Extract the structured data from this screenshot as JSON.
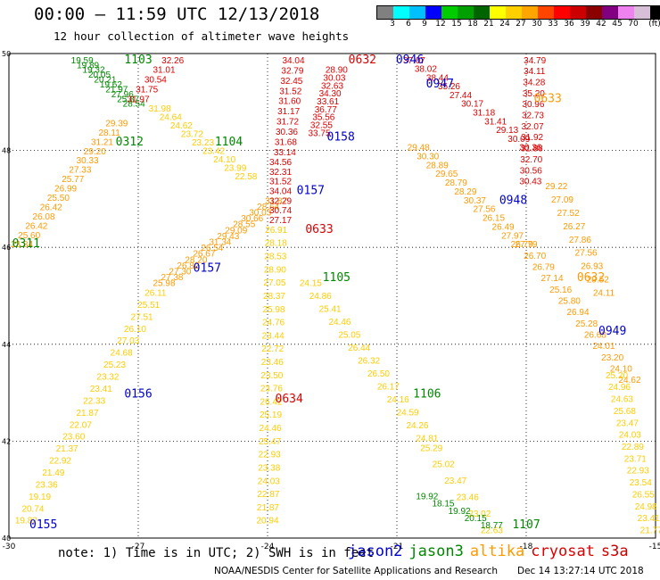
{
  "header": {
    "title": "00:00 – 11:59 UTC 12/13/2018",
    "subtitle": "12 hour collection of altimeter wave heights"
  },
  "colorbar": {
    "colors": [
      "#808080",
      "#00ffff",
      "#00bfff",
      "#0000ff",
      "#00cc00",
      "#00a000",
      "#006400",
      "#ffff00",
      "#ffd000",
      "#ffa500",
      "#ff4500",
      "#ff0000",
      "#cc0000",
      "#8b0000",
      "#800080",
      "#ee82ee",
      "#d8bfd8",
      "#000000"
    ],
    "labels": [
      "3",
      "6",
      "9",
      "12",
      "15",
      "18",
      "21",
      "24",
      "27",
      "30",
      "33",
      "36",
      "39",
      "42",
      "45",
      "70",
      "(ft)"
    ]
  },
  "note": "note: 1) Time is in UTC; 2) SWH is in feet",
  "satellites": [
    {
      "name": "jason2",
      "color": "#0000cc"
    },
    {
      "name": "jason3",
      "color": "#008800"
    },
    {
      "name": "altika",
      "color": "#ff9900"
    },
    {
      "name": "cryosat",
      "color": "#dd0000"
    },
    {
      "name": "s3a",
      "color": "#cc0000"
    }
  ],
  "footer": {
    "credit": "NOAA/NESDIS Center for Satellite Applications and Research",
    "timestamp": "Dec 14 13:27:14 UTC 2018"
  },
  "chart_data": {
    "type": "scatter",
    "xlim": [
      -30,
      -15
    ],
    "ylim": [
      40,
      50
    ],
    "xticks": [
      -30,
      -27,
      -24,
      -21,
      -18,
      -15
    ],
    "yticks": [
      40,
      42,
      44,
      46,
      48,
      50
    ],
    "xticklabels": [
      "-30",
      "-27",
      "-24",
      "-21",
      "-18",
      "-15"
    ],
    "yticklabels": [
      "40",
      "42",
      "44",
      "46",
      "48",
      "50"
    ],
    "grid": true,
    "pass_labels": [
      {
        "text": "1103",
        "lon": -27.0,
        "lat": 49.8,
        "color": "#008800"
      },
      {
        "text": "0632",
        "lon": -21.8,
        "lat": 49.8,
        "color": "#dd0000"
      },
      {
        "text": "0946",
        "lon": -20.7,
        "lat": 49.8,
        "color": "#0000cc"
      },
      {
        "text": "0947",
        "lon": -20.0,
        "lat": 49.3,
        "color": "#0000cc"
      },
      {
        "text": "0633",
        "lon": -17.5,
        "lat": 49.0,
        "color": "#ff9900"
      },
      {
        "text": "0312",
        "lon": -27.2,
        "lat": 48.1,
        "color": "#008800"
      },
      {
        "text": "1104",
        "lon": -24.9,
        "lat": 48.1,
        "color": "#008800"
      },
      {
        "text": "0158",
        "lon": -22.3,
        "lat": 48.2,
        "color": "#0000cc"
      },
      {
        "text": "0157",
        "lon": -23.0,
        "lat": 47.1,
        "color": "#0000cc"
      },
      {
        "text": "0948",
        "lon": -18.3,
        "lat": 46.9,
        "color": "#0000cc"
      },
      {
        "text": "0633",
        "lon": -22.8,
        "lat": 46.3,
        "color": "#dd0000"
      },
      {
        "text": "0311",
        "lon": -29.6,
        "lat": 46.0,
        "color": "#008800"
      },
      {
        "text": "0157",
        "lon": -25.4,
        "lat": 45.5,
        "color": "#0000cc"
      },
      {
        "text": "1105",
        "lon": -22.4,
        "lat": 45.3,
        "color": "#008800"
      },
      {
        "text": "0632",
        "lon": -16.5,
        "lat": 45.3,
        "color": "#ff9900"
      },
      {
        "text": "0949",
        "lon": -16.0,
        "lat": 44.2,
        "color": "#0000cc"
      },
      {
        "text": "0156",
        "lon": -27.0,
        "lat": 42.9,
        "color": "#0000cc"
      },
      {
        "text": "0634",
        "lon": -23.5,
        "lat": 42.8,
        "color": "#dd0000"
      },
      {
        "text": "1106",
        "lon": -20.3,
        "lat": 42.9,
        "color": "#008800"
      },
      {
        "text": "0155",
        "lon": -29.2,
        "lat": 40.2,
        "color": "#0000cc"
      },
      {
        "text": "1107",
        "lon": -18.0,
        "lat": 40.2,
        "color": "#008800"
      }
    ],
    "passes": [
      {
        "name": "pass-1103-nw",
        "color": "#008800",
        "start": [
          -28.3,
          49.8
        ],
        "end": [
          -27.1,
          48.9
        ],
        "values": [
          "19.59",
          "19.89",
          "19.32",
          "20.05",
          "20.21",
          "19.62",
          "21.97",
          "27.96",
          "25.87",
          "28.54"
        ]
      },
      {
        "name": "pass-cryo-nw",
        "color": "#dd0000",
        "start": [
          -26.2,
          49.8
        ],
        "end": [
          -27.0,
          49.0
        ],
        "values": [
          "32.26",
          "31.01",
          "30.54",
          "31.75",
          "31.97"
        ]
      },
      {
        "name": "pass-0312",
        "color": "#ff9900",
        "start": [
          -27.5,
          48.5
        ],
        "end": [
          -29.7,
          46.0
        ],
        "values": [
          "29.39",
          "28.11",
          "31.21",
          "29.20",
          "30.33",
          "27.33",
          "25.77",
          "26.99",
          "25.50",
          "26.42",
          "26.08",
          "26.42",
          "25.60",
          "23.84"
        ]
      },
      {
        "name": "pass-1104-sw",
        "color": "#ffcc00",
        "start": [
          -26.5,
          48.8
        ],
        "end": [
          -24.5,
          47.4
        ],
        "values": [
          "31.98",
          "24.64",
          "24.62",
          "23.72",
          "23.23",
          "23.42",
          "24.10",
          "23.99",
          "22.58"
        ]
      },
      {
        "name": "pass-0157-nw",
        "color": "#ff9900",
        "start": [
          -23.8,
          46.9
        ],
        "end": [
          -26.4,
          45.2
        ],
        "values": [
          "31.87",
          "28.64",
          "30.03",
          "30.66",
          "28.55",
          "29.09",
          "29.43",
          "31.34",
          "26.54",
          "26.67",
          "28.20",
          "26.82",
          "27.30",
          "27.38",
          "25.98"
        ]
      },
      {
        "name": "pass-0156",
        "color": "#ffcc00",
        "start": [
          -26.6,
          45.0
        ],
        "end": [
          -29.6,
          40.3
        ],
        "values": [
          "26.11",
          "25.51",
          "27.51",
          "26.10",
          "27.03",
          "24.68",
          "25.23",
          "23.32",
          "23.41",
          "22.33",
          "21.87",
          "22.07",
          "23.60",
          "21.37",
          "22.92",
          "21.49",
          "23.36",
          "19.19",
          "20.74",
          "19.82"
        ]
      },
      {
        "name": "pass-0632-n",
        "color": "#dd0000",
        "start": [
          -23.4,
          49.8
        ],
        "end": [
          -23.6,
          47.9
        ],
        "values": [
          "34.04",
          "32.79",
          "32.45",
          "31.52",
          "31.60",
          "31.17",
          "31.72",
          "30.36",
          "31.68",
          "33.14"
        ]
      },
      {
        "name": "pass-0157-center",
        "color": "#dd0000",
        "start": [
          -23.7,
          47.7
        ],
        "end": [
          -23.7,
          46.5
        ],
        "values": [
          "34.56",
          "32.31",
          "31.52",
          "34.04",
          "32.29",
          "30.74",
          "27.17"
        ]
      },
      {
        "name": "pass-0634",
        "color": "#ffcc00",
        "start": [
          -23.8,
          46.3
        ],
        "end": [
          -24.0,
          40.3
        ],
        "values": [
          "26.91",
          "28.18",
          "28.53",
          "28.90",
          "27.05",
          "28.37",
          "25.98",
          "24.76",
          "23.44",
          "22.72",
          "23.46",
          "23.50",
          "23.76",
          "26.42",
          "25.19",
          "24.46",
          "25.47",
          "22.93",
          "23.38",
          "24.03",
          "22.87",
          "21.87",
          "20.94"
        ]
      },
      {
        "name": "pass-0946-cluster",
        "color": "#dd0000",
        "start": [
          -22.4,
          49.6
        ],
        "end": [
          -22.8,
          48.3
        ],
        "values": [
          "28.90",
          "30.03",
          "32.63",
          "34.30",
          "33.61",
          "36.77",
          "35.56",
          "32.55",
          "33.75"
        ]
      },
      {
        "name": "pass-0947",
        "color": "#dd0000",
        "start": [
          -20.6,
          49.8
        ],
        "end": [
          -17.9,
          48.0
        ],
        "values": [
          "37.07",
          "38.02",
          "38.44",
          "35.26",
          "27.44",
          "30.17",
          "31.18",
          "31.41",
          "29.13",
          "30.09",
          "30.36"
        ]
      },
      {
        "name": "pass-0633-cryo",
        "color": "#dd0000",
        "start": [
          -17.8,
          49.8
        ],
        "end": [
          -17.9,
          47.3
        ],
        "values": [
          "34.79",
          "34.11",
          "34.28",
          "35.20",
          "30.96",
          "32.73",
          "32.07",
          "31.92",
          "31.88",
          "32.70",
          "30.56",
          "30.43"
        ]
      },
      {
        "name": "pass-0158",
        "color": "#ff9900",
        "start": [
          -20.5,
          48.0
        ],
        "end": [
          -18.1,
          46.0
        ],
        "values": [
          "29.48",
          "30.30",
          "28.89",
          "29.65",
          "28.79",
          "28.29",
          "30.37",
          "27.56",
          "26.15",
          "26.49",
          "27.97",
          "26.79"
        ]
      },
      {
        "name": "pass-0633-alt",
        "color": "#ff9900",
        "start": [
          -17.3,
          47.2
        ],
        "end": [
          -16.2,
          45.0
        ],
        "values": [
          "29.22",
          "27.09",
          "27.52",
          "26.27",
          "27.86",
          "27.56",
          "26.93",
          "29.52",
          "24.11"
        ]
      },
      {
        "name": "pass-0948",
        "color": "#ff9900",
        "start": [
          -18.0,
          46.0
        ],
        "end": [
          -15.6,
          43.2
        ],
        "values": [
          "27.79",
          "26.70",
          "26.79",
          "27.14",
          "25.16",
          "25.80",
          "26.94",
          "25.28",
          "26.68",
          "24.01",
          "23.20",
          "24.10",
          "24.62"
        ]
      },
      {
        "name": "pass-0949",
        "color": "#ffcc00",
        "start": [
          -15.9,
          43.3
        ],
        "end": [
          -15.1,
          40.1
        ],
        "values": [
          "25.20",
          "24.96",
          "24.63",
          "25.68",
          "23.47",
          "24.03",
          "22.89",
          "23.71",
          "22.93",
          "23.54",
          "26.55",
          "24.98",
          "23.41",
          "21.77"
        ]
      },
      {
        "name": "pass-1105",
        "color": "#ffcc00",
        "start": [
          -23.0,
          45.2
        ],
        "end": [
          -20.3,
          42.0
        ],
        "values": [
          "24.15",
          "24.86",
          "25.41",
          "24.46",
          "25.05",
          "26.44",
          "26.32",
          "26.50",
          "26.17",
          "24.16",
          "24.59",
          "24.26",
          "24.81"
        ]
      },
      {
        "name": "pass-1106",
        "color": "#ffcc00",
        "start": [
          -20.2,
          41.8
        ],
        "end": [
          -18.8,
          40.1
        ],
        "values": [
          "25.29",
          "25.02",
          "23.47",
          "23.46",
          "23.02",
          "22.63"
        ]
      },
      {
        "name": "pass-1107",
        "color": "#008800",
        "start": [
          -20.3,
          40.8
        ],
        "end": [
          -18.8,
          40.2
        ],
        "values": [
          "19.92",
          "18.15",
          "19.92",
          "20.15",
          "18.77"
        ]
      }
    ]
  }
}
